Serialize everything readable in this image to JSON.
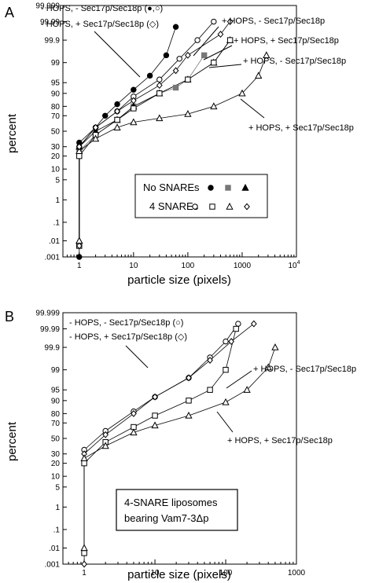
{
  "chart_data": [
    {
      "panel_label": "A",
      "type": "scatter",
      "xlabel": "particle size (pixels)",
      "ylabel": "percent",
      "xscale": "log",
      "yscale": "normal-probability",
      "xlim": [
        0.5,
        10000
      ],
      "ylim": [
        0.001,
        99.999
      ],
      "x_tick_labels": [
        "1",
        "10",
        "100",
        "1000",
        "10"
      ],
      "x_tick_superscript": "4",
      "y_tick_labels": [
        "99.999",
        "99.99",
        "99.9",
        "99",
        "95",
        "90",
        "80",
        "70",
        "50",
        "30",
        "20",
        "10",
        "5",
        "1",
        ".1",
        ".01",
        ".001"
      ],
      "legend": {
        "rows": [
          {
            "label": "No SNAREs",
            "markers": [
              "filled-circle",
              "filled-square",
              "filled-triangle"
            ]
          },
          {
            "label": "4 SNAREs",
            "markers": [
              "open-circle",
              "open-square",
              "open-triangle",
              "open-diamond"
            ]
          }
        ]
      },
      "annotations": [
        "- HOPS, - Sec17p/Sec18p (●,○)",
        "- HOPS, + Sec17p/Sec18p (◇)",
        "+ HOPS, - Sec17p/Sec18p",
        "+ HOPS, + Sec17p/Sec18p",
        "+ HOPS, - Sec17p/Sec18p",
        "+ HOPS, + Sec17p/Sec18p"
      ],
      "series": [
        {
          "marker": "filled-circle",
          "x": [
            1,
            1,
            2,
            3,
            5,
            10,
            20,
            40,
            60
          ],
          "y": [
            0.001,
            35,
            55,
            70,
            82,
            92,
            97,
            99.5,
            99.98
          ]
        },
        {
          "marker": "filled-square",
          "x": [
            1,
            1,
            2,
            5,
            10,
            30,
            60,
            100,
            200
          ],
          "y": [
            0.005,
            25,
            45,
            65,
            80,
            90,
            93,
            96,
            99.5
          ]
        },
        {
          "marker": "filled-triangle",
          "x": [
            1,
            1,
            2,
            5,
            10,
            30,
            100,
            300,
            600
          ],
          "y": [
            0.01,
            30,
            50,
            65,
            80,
            90,
            96,
            99,
            99.9
          ]
        },
        {
          "marker": "open-circle",
          "x": [
            1,
            1,
            2,
            5,
            10,
            30,
            70,
            150,
            300
          ],
          "y": [
            0.005,
            30,
            55,
            75,
            88,
            96,
            99.3,
            99.9,
            99.99
          ]
        },
        {
          "marker": "open-square",
          "x": [
            1,
            1,
            2,
            5,
            10,
            30,
            100,
            300,
            600
          ],
          "y": [
            0.005,
            20,
            45,
            65,
            78,
            90,
            96,
            99,
            99.9
          ]
        },
        {
          "marker": "open-triangle",
          "x": [
            1,
            1,
            2,
            5,
            10,
            30,
            100,
            300,
            1000,
            2000,
            2800
          ],
          "y": [
            0.01,
            25,
            40,
            55,
            62,
            67,
            72,
            80,
            90,
            97,
            99.5
          ]
        },
        {
          "marker": "open-diamond",
          "x": [
            1,
            1,
            2,
            5,
            10,
            30,
            60,
            100,
            400,
            600
          ],
          "y": [
            0.005,
            30,
            55,
            75,
            85,
            94,
            98,
            99.5,
            99.95,
            99.99
          ]
        }
      ]
    },
    {
      "panel_label": "B",
      "type": "scatter",
      "xlabel": "particle size (pixels)",
      "ylabel": "percent",
      "xscale": "log",
      "yscale": "normal-probability",
      "xlim": [
        0.5,
        1000
      ],
      "ylim": [
        0.001,
        99.999
      ],
      "x_tick_labels": [
        "1",
        "10",
        "100",
        "1000"
      ],
      "y_tick_labels": [
        "99.999",
        "99.99",
        "99.9",
        "99",
        "95",
        "90",
        "80",
        "70",
        "50",
        "30",
        "20",
        "10",
        "5",
        "1",
        ".1",
        ".01",
        ".001"
      ],
      "box_text": [
        "4-SNARE liposomes",
        "bearing Vam7-3Δp"
      ],
      "annotations": [
        "- HOPS, - Sec17p/Sec18p (○)",
        "- HOPS, + Sec17p/Sec18p (◇)",
        "+ HOPS, - Sec17p/Sec18p",
        "+ HOPS, + Sec17p/Sec18p"
      ],
      "series": [
        {
          "marker": "open-circle",
          "x": [
            1,
            1,
            2,
            5,
            10,
            30,
            60,
            100,
            150
          ],
          "y": [
            0.005,
            35,
            60,
            82,
            92,
            98,
            99.7,
            99.95,
            99.995
          ]
        },
        {
          "marker": "open-diamond",
          "x": [
            1,
            1,
            2,
            5,
            10,
            30,
            60,
            120,
            250
          ],
          "y": [
            0.001,
            30,
            55,
            80,
            92,
            98,
            99.6,
            99.95,
            99.995
          ]
        },
        {
          "marker": "open-square",
          "x": [
            1,
            1,
            2,
            5,
            10,
            30,
            60,
            100,
            140
          ],
          "y": [
            0.005,
            20,
            45,
            65,
            78,
            90,
            95,
            99,
            99.99
          ]
        },
        {
          "marker": "open-triangle",
          "x": [
            1,
            1,
            2,
            5,
            10,
            30,
            100,
            200,
            400,
            500
          ],
          "y": [
            0.01,
            25,
            40,
            58,
            67,
            78,
            89,
            95,
            99.2,
            99.9
          ]
        }
      ]
    }
  ]
}
